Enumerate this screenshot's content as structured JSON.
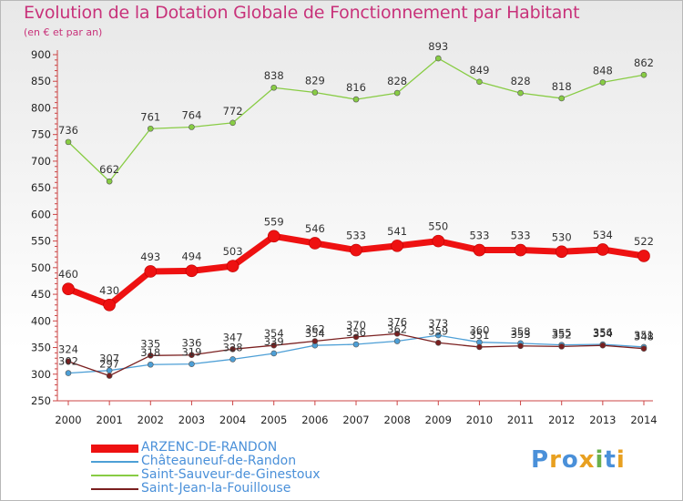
{
  "title": "Evolution de la Dotation Globale de Fonctionnement par Habitant",
  "subtitle": "(en € et par an)",
  "logo": {
    "text": "Proxiti",
    "letters": [
      "P",
      "r",
      "o",
      "x",
      "i",
      "t",
      "i"
    ],
    "colors": [
      "#4a90d9",
      "#e8a020",
      "#4a90d9",
      "#e8a020",
      "#6ab04c",
      "#4a90d9",
      "#e8a020"
    ]
  },
  "chart_data": {
    "type": "line",
    "title": "Evolution de la Dotation Globale de Fonctionnement par Habitant",
    "ylabel": "(en € et par an)",
    "xlabel": "",
    "x": [
      "2000",
      "2001",
      "2002",
      "2003",
      "2004",
      "2005",
      "2006",
      "2007",
      "2008",
      "2009",
      "2010",
      "2011",
      "2012",
      "2013",
      "2014"
    ],
    "ylim": [
      250,
      900
    ],
    "yticks": [
      250,
      300,
      350,
      400,
      450,
      500,
      550,
      600,
      650,
      700,
      750,
      800,
      850,
      900
    ],
    "grid": false,
    "series": [
      {
        "name": "ARZENC-DE-RANDON",
        "color": "#ee1111",
        "bold": true,
        "values": [
          460,
          430,
          493,
          494,
          503,
          559,
          546,
          533,
          541,
          550,
          533,
          533,
          530,
          534,
          522
        ]
      },
      {
        "name": "Châteauneuf-de-Randon",
        "color": "#4d9fd6",
        "bold": false,
        "values": [
          302,
          307,
          318,
          319,
          328,
          339,
          354,
          356,
          362,
          373,
          360,
          358,
          355,
          356,
          351
        ]
      },
      {
        "name": "Saint-Sauveur-de-Ginestoux",
        "color": "#88cc44",
        "bold": false,
        "values": [
          736,
          662,
          761,
          764,
          772,
          838,
          829,
          816,
          828,
          893,
          849,
          828,
          818,
          848,
          862
        ]
      },
      {
        "name": "Saint-Jean-la-Fouillouse",
        "color": "#7a1f1f",
        "bold": false,
        "values": [
          324,
          297,
          335,
          336,
          347,
          354,
          362,
          370,
          376,
          359,
          351,
          353,
          352,
          354,
          348
        ]
      }
    ]
  }
}
